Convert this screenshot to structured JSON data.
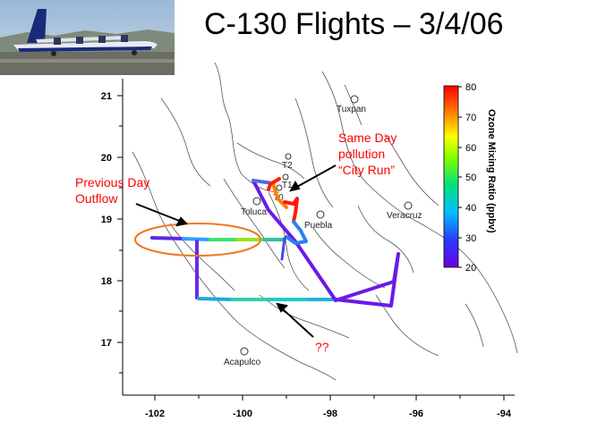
{
  "title": "C-130 Flights – 3/4/06",
  "photo": {
    "icon": "c130-aircraft-photo"
  },
  "x_ticks": [
    "-102",
    "-100",
    "-98",
    "-96",
    "-94"
  ],
  "y_ticks": [
    "21",
    "20",
    "19",
    "18",
    "17"
  ],
  "cities": [
    {
      "name": "Tuxpan"
    },
    {
      "name": "T2"
    },
    {
      "name": "T1"
    },
    {
      "name": "T0"
    },
    {
      "name": "Toluca"
    },
    {
      "name": "Puebla"
    },
    {
      "name": "Veracruz"
    },
    {
      "name": "Acapulco"
    }
  ],
  "annotations": {
    "same_day_1": "Same Day",
    "same_day_2": "pollution",
    "same_day_3": "“City Run”",
    "previous_1": "Previous Day",
    "previous_2": "Outflow",
    "question": "??"
  },
  "colorbar": {
    "title": "Ozone Mixing Ratio (ppbv)",
    "ticks": [
      "80",
      "70",
      "60",
      "50",
      "40",
      "30",
      "20"
    ],
    "min": 20,
    "max": 80
  },
  "chart_data": {
    "type": "map",
    "xlim": [
      -102.5,
      -94
    ],
    "ylim": [
      16.2,
      21.4
    ],
    "colors": {
      "low": "#5a00e0",
      "high": "#ff0000",
      "ellipse": "#f07820"
    }
  }
}
